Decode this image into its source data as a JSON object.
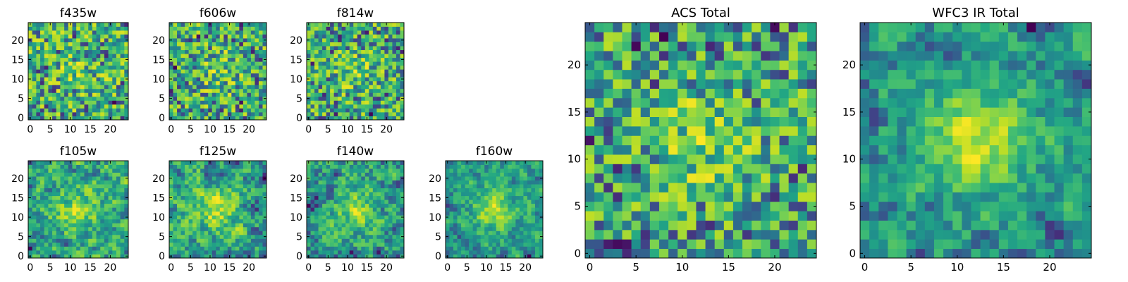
{
  "chart_data": [
    {
      "type": "heatmap",
      "title": "f435w",
      "size": 25,
      "xlim": [
        -0.5,
        24.5
      ],
      "ylim": [
        -0.5,
        24.5
      ],
      "xticks": [
        0,
        5,
        10,
        15,
        20
      ],
      "yticks": [
        0,
        5,
        10,
        15,
        20
      ],
      "colormap": "viridis",
      "seed": 11,
      "smoothing": 0,
      "blob": 0.15,
      "grid": false
    },
    {
      "type": "heatmap",
      "title": "f606w",
      "size": 25,
      "xlim": [
        -0.5,
        24.5
      ],
      "ylim": [
        -0.5,
        24.5
      ],
      "xticks": [
        0,
        5,
        10,
        15,
        20
      ],
      "yticks": [
        0,
        5,
        10,
        15,
        20
      ],
      "colormap": "viridis",
      "seed": 23,
      "smoothing": 0,
      "blob": 0.2,
      "grid": false
    },
    {
      "type": "heatmap",
      "title": "f814w",
      "size": 25,
      "xlim": [
        -0.5,
        24.5
      ],
      "ylim": [
        -0.5,
        24.5
      ],
      "xticks": [
        0,
        5,
        10,
        15,
        20
      ],
      "yticks": [
        0,
        5,
        10,
        15,
        20
      ],
      "colormap": "viridis",
      "seed": 37,
      "smoothing": 0,
      "blob": 0.2,
      "grid": false
    },
    {
      "type": "heatmap",
      "title": "f105w",
      "size": 25,
      "xlim": [
        -0.5,
        24.5
      ],
      "ylim": [
        -0.5,
        24.5
      ],
      "xticks": [
        0,
        5,
        10,
        15,
        20
      ],
      "yticks": [
        0,
        5,
        10,
        15,
        20
      ],
      "colormap": "viridis",
      "seed": 41,
      "smoothing": 1,
      "blob": 0.35,
      "grid": false
    },
    {
      "type": "heatmap",
      "title": "f125w",
      "size": 25,
      "xlim": [
        -0.5,
        24.5
      ],
      "ylim": [
        -0.5,
        24.5
      ],
      "xticks": [
        0,
        5,
        10,
        15,
        20
      ],
      "yticks": [
        0,
        5,
        10,
        15,
        20
      ],
      "colormap": "viridis",
      "seed": 53,
      "smoothing": 1,
      "blob": 0.35,
      "grid": false
    },
    {
      "type": "heatmap",
      "title": "f140w",
      "size": 25,
      "xlim": [
        -0.5,
        24.5
      ],
      "ylim": [
        -0.5,
        24.5
      ],
      "xticks": [
        0,
        5,
        10,
        15,
        20
      ],
      "yticks": [
        0,
        5,
        10,
        15,
        20
      ],
      "colormap": "viridis",
      "seed": 67,
      "smoothing": 1,
      "blob": 0.35,
      "grid": false
    },
    {
      "type": "heatmap",
      "title": "f160w",
      "size": 25,
      "xlim": [
        -0.5,
        24.5
      ],
      "ylim": [
        -0.5,
        24.5
      ],
      "xticks": [
        0,
        5,
        10,
        15,
        20
      ],
      "yticks": [
        0,
        5,
        10,
        15,
        20
      ],
      "colormap": "viridis",
      "seed": 79,
      "smoothing": 1,
      "blob": 0.55,
      "grid": false
    },
    {
      "type": "heatmap",
      "title": "ACS Total",
      "size": 25,
      "xlim": [
        -0.5,
        24.5
      ],
      "ylim": [
        -0.5,
        24.5
      ],
      "xticks": [
        0,
        5,
        10,
        15,
        20
      ],
      "yticks": [
        0,
        5,
        10,
        15,
        20
      ],
      "colormap": "viridis",
      "seed": 97,
      "smoothing": 0,
      "blob": 0.3,
      "grid": false
    },
    {
      "type": "heatmap",
      "title": "WFC3 IR Total",
      "size": 25,
      "xlim": [
        -0.5,
        24.5
      ],
      "ylim": [
        -0.5,
        24.5
      ],
      "xticks": [
        0,
        5,
        10,
        15,
        20
      ],
      "yticks": [
        0,
        5,
        10,
        15,
        20
      ],
      "colormap": "viridis",
      "seed": 113,
      "smoothing": 1,
      "blob": 0.6,
      "grid": false
    }
  ]
}
